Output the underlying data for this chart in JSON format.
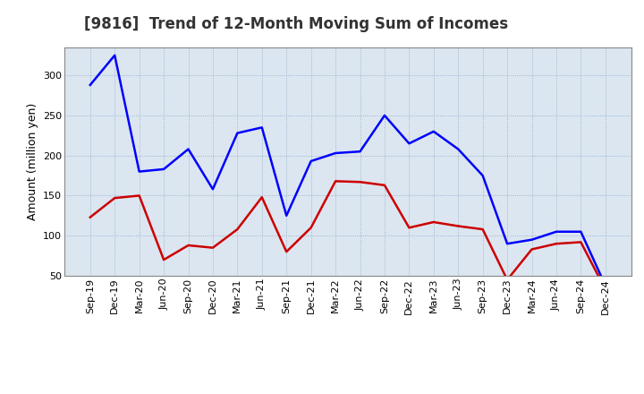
{
  "title": "[9816]  Trend of 12-Month Moving Sum of Incomes",
  "ylabel": "Amount (million yen)",
  "labels": [
    "Sep-19",
    "Dec-19",
    "Mar-20",
    "Jun-20",
    "Sep-20",
    "Dec-20",
    "Mar-21",
    "Jun-21",
    "Sep-21",
    "Dec-21",
    "Mar-22",
    "Jun-22",
    "Sep-22",
    "Dec-22",
    "Mar-23",
    "Jun-23",
    "Sep-23",
    "Dec-23",
    "Mar-24",
    "Jun-24",
    "Sep-24",
    "Dec-24"
  ],
  "ordinary_income": [
    288,
    325,
    180,
    183,
    208,
    158,
    228,
    235,
    125,
    193,
    203,
    205,
    250,
    215,
    230,
    208,
    175,
    90,
    95,
    105,
    105,
    38
  ],
  "net_income": [
    123,
    147,
    150,
    70,
    88,
    85,
    108,
    148,
    80,
    110,
    168,
    167,
    163,
    110,
    117,
    112,
    108,
    45,
    83,
    90,
    92,
    33
  ],
  "ordinary_color": "#0000ff",
  "net_color": "#cc0000",
  "background_color": "#ffffff",
  "plot_bg_color": "#dce6f0",
  "grid_color": "#7799bb",
  "ylim": [
    50,
    335
  ],
  "yticks": [
    50,
    100,
    150,
    200,
    250,
    300
  ],
  "title_fontsize": 12,
  "axis_fontsize": 9,
  "tick_fontsize": 8,
  "line_width": 1.8
}
